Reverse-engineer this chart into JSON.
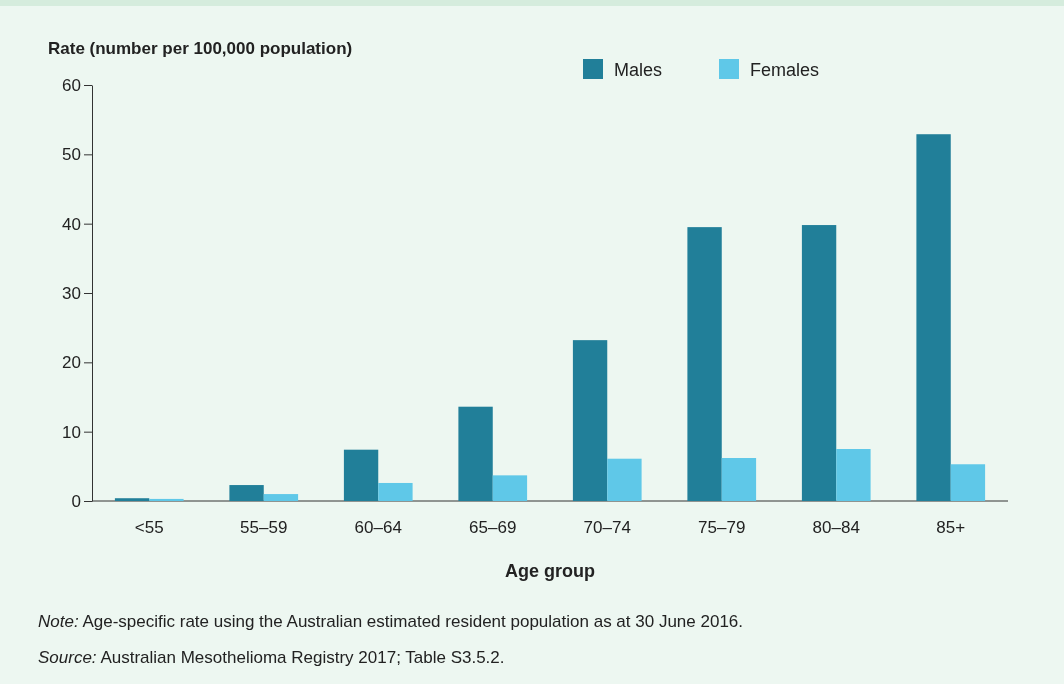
{
  "chart_data": {
    "type": "bar",
    "ylabel": "Rate (number per 100,000 population)",
    "xlabel": "Age group",
    "categories": [
      "<55",
      "55–59",
      "60–64",
      "65–69",
      "70–74",
      "75–79",
      "80–84",
      "85+"
    ],
    "series": [
      {
        "name": "Males",
        "color": "#217f99",
        "values": [
          0.4,
          2.3,
          7.4,
          13.6,
          23.2,
          39.5,
          39.8,
          52.9
        ]
      },
      {
        "name": "Females",
        "color": "#5fc8e8",
        "values": [
          0.3,
          1.0,
          2.6,
          3.7,
          6.1,
          6.2,
          7.5,
          5.3
        ]
      }
    ],
    "ylim": [
      0,
      60
    ],
    "yticks": [
      0,
      10,
      20,
      30,
      40,
      50,
      60
    ],
    "grid": false,
    "legend": "top right",
    "annotations": [
      "Note: Age-specific rate using the Australian estimated resident population as at 30 June 2016.",
      "Source: Australian Mesothelioma Registry 2017; Table S3.5.2."
    ]
  }
}
